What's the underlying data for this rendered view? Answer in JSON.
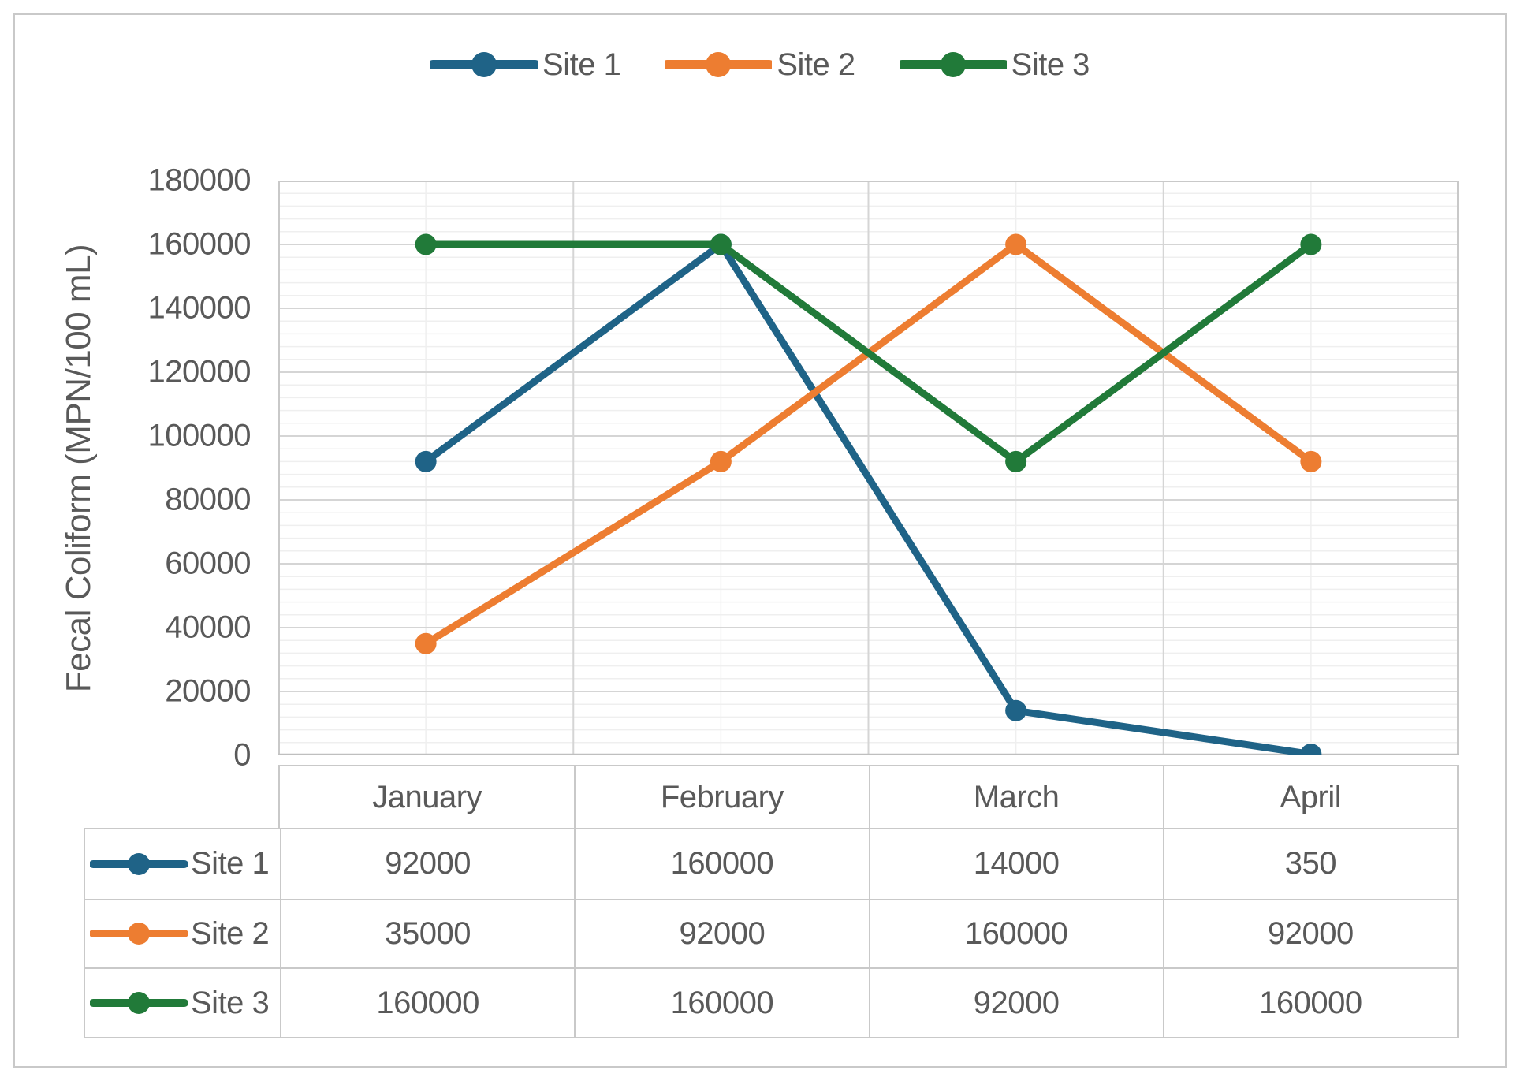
{
  "figure": {
    "background": "#FFFFFF",
    "border_color": "#C9C9C9"
  },
  "legend": {
    "position": "top",
    "items": [
      {
        "label": "Site 1",
        "color": "#1F6387"
      },
      {
        "label": "Site 2",
        "color": "#ED7D31"
      },
      {
        "label": "Site 3",
        "color": "#217A39"
      }
    ]
  },
  "chart_data": {
    "type": "line",
    "title": "",
    "xlabel": "",
    "ylabel": "Fecal Coliform (MPN/100 mL)",
    "categories": [
      "January",
      "February",
      "March",
      "April"
    ],
    "series": [
      {
        "name": "Site 1",
        "color": "#1F6387",
        "values": [
          92000,
          160000,
          14000,
          350
        ]
      },
      {
        "name": "Site 2",
        "color": "#ED7D31",
        "values": [
          35000,
          92000,
          160000,
          92000
        ]
      },
      {
        "name": "Site 3",
        "color": "#217A39",
        "values": [
          160000,
          160000,
          92000,
          160000
        ]
      }
    ],
    "ylim": [
      0,
      180000
    ],
    "y_major_unit": 20000,
    "y_minor_unit": 4000,
    "y_tick_labels": [
      "180000",
      "160000",
      "140000",
      "120000",
      "100000",
      "80000",
      "60000",
      "40000",
      "20000",
      "0"
    ],
    "grid": true,
    "legend_position": "top",
    "data_table": true,
    "marker": "circle"
  },
  "grid_colors": {
    "major": "#D5D5D5",
    "minor": "#EFEFEF",
    "plot_border": "#C9C9C9",
    "axis_line": "#BFBFBF"
  }
}
